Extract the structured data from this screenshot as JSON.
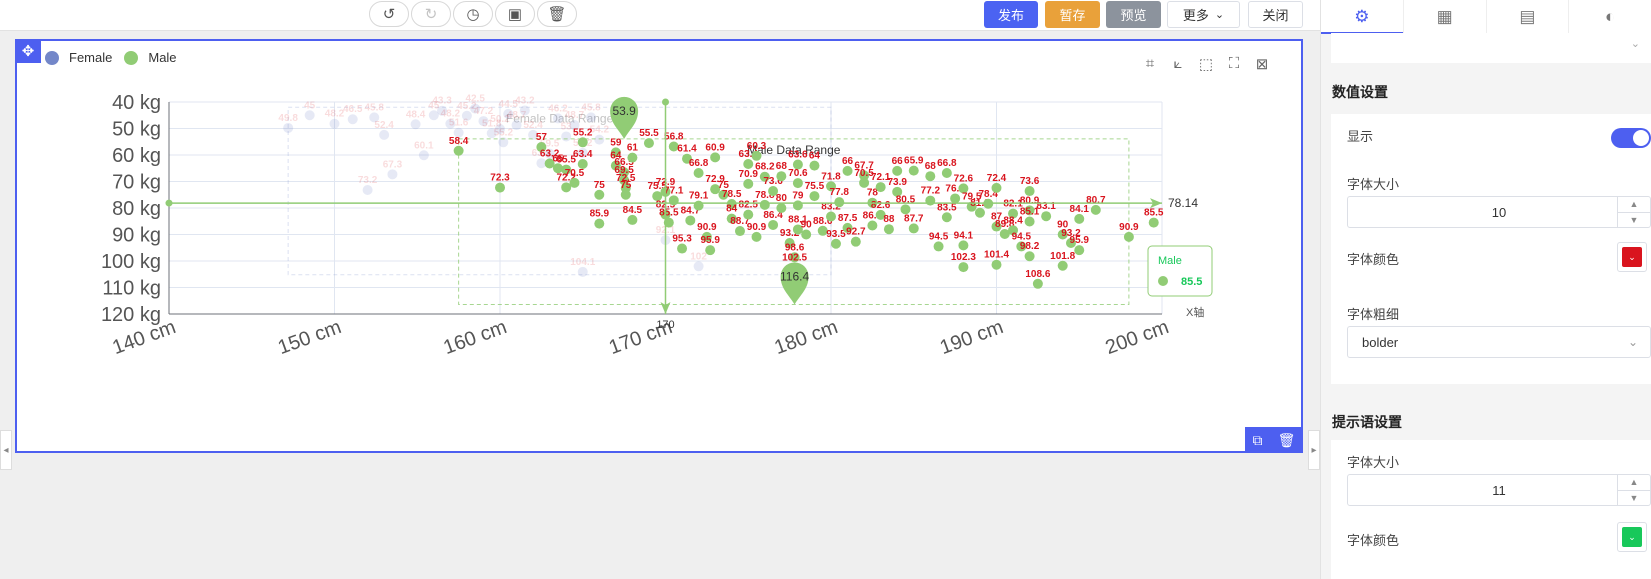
{
  "toolbar": {
    "publish_label": "发布",
    "save_label": "暂存",
    "preview_label": "预览",
    "more_label": "更多",
    "close_label": "关闭"
  },
  "legend": {
    "items": [
      {
        "label": "Female",
        "color": "#7387c9"
      },
      {
        "label": "Male",
        "color": "#91cc75"
      }
    ]
  },
  "tooltip": {
    "series": "Male",
    "value": "85.5",
    "title_color": "#18c85a"
  },
  "chart_data": {
    "type": "scatter",
    "title": "",
    "xlabel": "X轴",
    "ylabel": "",
    "xlim": [
      140,
      200
    ],
    "ylim": [
      40,
      120
    ],
    "y_inverted": true,
    "x_ticks": [
      "140 cm",
      "150 cm",
      "160 cm",
      "170 cm",
      "180 cm",
      "190 cm",
      "200 cm"
    ],
    "y_ticks": [
      "40 kg",
      "50 kg",
      "60 kg",
      "70 kg",
      "80 kg",
      "90 kg",
      "100 kg",
      "110 kg",
      "120 kg"
    ],
    "label_color": "#d9141e",
    "series": [
      {
        "name": "Female",
        "color": "#7387c9",
        "faded": true,
        "mark_area_label": "Female Data Range",
        "mark_area": {
          "x": [
            147.2,
            180
          ],
          "y": [
            42,
            105.2
          ]
        },
        "points": [
          [
            147.2,
            49.8
          ],
          [
            148.5,
            45.0
          ],
          [
            150.0,
            48.2
          ],
          [
            151.1,
            46.5
          ],
          [
            152.4,
            45.8
          ],
          [
            153.0,
            52.4
          ],
          [
            153.5,
            67.3
          ],
          [
            154.9,
            48.4
          ],
          [
            155.4,
            60.1
          ],
          [
            156.0,
            45.0
          ],
          [
            156.5,
            43.3
          ],
          [
            157.0,
            48.2
          ],
          [
            157.5,
            51.6
          ],
          [
            158.0,
            45.2
          ],
          [
            158.5,
            42.5
          ],
          [
            159.0,
            47.2
          ],
          [
            159.5,
            51.8
          ],
          [
            160.0,
            50.2
          ],
          [
            160.2,
            55.2
          ],
          [
            160.5,
            44.5
          ],
          [
            161.0,
            48.7
          ],
          [
            161.5,
            43.2
          ],
          [
            162.0,
            52.4
          ],
          [
            162.5,
            63.1
          ],
          [
            163.0,
            59.5
          ],
          [
            163.5,
            46.2
          ],
          [
            164.0,
            53.0
          ],
          [
            164.5,
            48.7
          ],
          [
            165.0,
            59.2
          ],
          [
            165.5,
            45.8
          ],
          [
            166.0,
            54.2
          ],
          [
            152.0,
            73.2
          ],
          [
            165.0,
            104.1
          ],
          [
            170.0,
            92.1
          ],
          [
            172.0,
            102.0
          ]
        ]
      },
      {
        "name": "Male",
        "color": "#91cc75",
        "mark_area_label": "Male Data Range",
        "mark_area": {
          "x": [
            157.5,
            198
          ],
          "y": [
            53.9,
            116.4
          ]
        },
        "mark_points": [
          {
            "label": "53.9",
            "x": 167.5,
            "y": 53.9
          },
          {
            "label": "116.4",
            "x": 177.8,
            "y": 116.4
          }
        ],
        "mark_line_avg": {
          "x": 170,
          "y": 78.14
        },
        "points": [
          [
            157.5,
            58.4
          ],
          [
            160.0,
            72.3
          ],
          [
            162.5,
            57.0
          ],
          [
            163.0,
            63.2
          ],
          [
            163.5,
            65.0
          ],
          [
            164.0,
            65.5
          ],
          [
            164.0,
            72.2
          ],
          [
            164.5,
            70.5
          ],
          [
            165.0,
            63.4
          ],
          [
            165.0,
            55.2
          ],
          [
            166.0,
            75.0
          ],
          [
            166.0,
            85.9
          ],
          [
            167.0,
            59.0
          ],
          [
            167.0,
            64.0
          ],
          [
            167.5,
            66.5
          ],
          [
            167.5,
            69.5
          ],
          [
            167.6,
            72.5
          ],
          [
            167.6,
            75.0
          ],
          [
            168.0,
            84.5
          ],
          [
            168.0,
            61.0
          ],
          [
            169.0,
            55.5
          ],
          [
            169.5,
            75.5
          ],
          [
            170.0,
            73.9
          ],
          [
            170.0,
            82.5
          ],
          [
            170.2,
            85.5
          ],
          [
            170.5,
            56.8
          ],
          [
            170.5,
            77.1
          ],
          [
            171.0,
            95.3
          ],
          [
            171.3,
            61.4
          ],
          [
            171.5,
            84.7
          ],
          [
            172.0,
            66.8
          ],
          [
            172.0,
            79.1
          ],
          [
            172.5,
            90.9
          ],
          [
            172.7,
            95.9
          ],
          [
            173.0,
            60.9
          ],
          [
            173.0,
            72.9
          ],
          [
            173.5,
            75.0
          ],
          [
            174.0,
            78.5
          ],
          [
            174.0,
            84.0
          ],
          [
            174.5,
            88.7
          ],
          [
            175.0,
            63.4
          ],
          [
            175.0,
            70.9
          ],
          [
            175.0,
            82.5
          ],
          [
            175.5,
            90.9
          ],
          [
            175.5,
            60.3
          ],
          [
            176.0,
            68.2
          ],
          [
            176.0,
            78.8
          ],
          [
            176.5,
            73.6
          ],
          [
            176.5,
            86.4
          ],
          [
            177.0,
            68.0
          ],
          [
            177.0,
            80.0
          ],
          [
            177.5,
            93.2
          ],
          [
            177.8,
            98.6
          ],
          [
            177.8,
            102.5
          ],
          [
            178.0,
            63.6
          ],
          [
            178.0,
            70.6
          ],
          [
            178.0,
            79.0
          ],
          [
            178.0,
            88.1
          ],
          [
            178.5,
            90.0
          ],
          [
            179.0,
            64.0
          ],
          [
            179.0,
            75.5
          ],
          [
            179.5,
            88.6
          ],
          [
            180.0,
            71.8
          ],
          [
            180.0,
            83.2
          ],
          [
            180.3,
            93.5
          ],
          [
            180.5,
            77.8
          ],
          [
            181.0,
            66.0
          ],
          [
            181.0,
            87.5
          ],
          [
            181.5,
            92.7
          ],
          [
            182.0,
            67.7
          ],
          [
            182.0,
            70.5
          ],
          [
            182.5,
            78.0
          ],
          [
            182.5,
            86.6
          ],
          [
            183.0,
            72.1
          ],
          [
            183.0,
            82.6
          ],
          [
            183.5,
            88.0
          ],
          [
            184.0,
            66.0
          ],
          [
            184.0,
            73.9
          ],
          [
            184.5,
            80.5
          ],
          [
            185.0,
            65.9
          ],
          [
            185.0,
            87.7
          ],
          [
            186.0,
            68.0
          ],
          [
            186.0,
            77.2
          ],
          [
            186.5,
            94.5
          ],
          [
            187.0,
            66.8
          ],
          [
            187.0,
            83.5
          ],
          [
            187.5,
            76.4
          ],
          [
            188.0,
            72.6
          ],
          [
            188.0,
            94.1
          ],
          [
            188.0,
            102.3
          ],
          [
            188.5,
            79.5
          ],
          [
            189.0,
            81.8
          ],
          [
            189.5,
            78.4
          ],
          [
            190.0,
            72.4
          ],
          [
            190.0,
            87.0
          ],
          [
            190.0,
            101.4
          ],
          [
            190.5,
            89.8
          ],
          [
            191.0,
            82.1
          ],
          [
            191.0,
            88.4
          ],
          [
            191.5,
            94.5
          ],
          [
            192.0,
            73.6
          ],
          [
            192.0,
            80.9
          ],
          [
            192.0,
            85.1
          ],
          [
            192.0,
            98.2
          ],
          [
            192.5,
            108.6
          ],
          [
            193.0,
            83.1
          ],
          [
            194.0,
            90.0
          ],
          [
            194.0,
            101.8
          ],
          [
            194.5,
            93.2
          ],
          [
            195.0,
            95.9
          ],
          [
            195.0,
            84.1
          ],
          [
            196.0,
            80.7
          ],
          [
            198.0,
            90.9
          ],
          [
            199.5,
            85.5
          ]
        ]
      }
    ]
  },
  "panel": {
    "value_section_title": "数值设置",
    "show_label": "显示",
    "font_size_label": "字体大小",
    "font_size_value": "10",
    "font_color_label": "字体颜色",
    "font_color": "#d9141e",
    "font_weight_label": "字体粗细",
    "font_weight_value": "bolder",
    "tooltip_section_title": "提示语设置",
    "tooltip_font_size_label": "字体大小",
    "tooltip_font_size_value": "11",
    "tooltip_font_color_label": "字体颜色",
    "tooltip_font_color": "#18c85a"
  }
}
